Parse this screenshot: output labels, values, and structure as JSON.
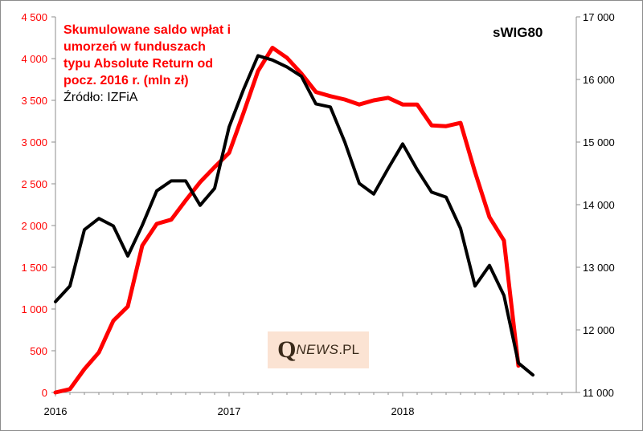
{
  "chart_data": {
    "type": "line",
    "title": "Skumulowane saldo wpłat i umorzeń w funduszach typu Absolute Return od pocz. 2016 r. (mln zł)",
    "title_lines": [
      "Skumulowane saldo wpłat i",
      "umorzeń w funduszach",
      "typu Absolute Return od",
      "pocz. 2016 r. (mln zł)"
    ],
    "source": "Źródło: IZFiA",
    "series_label": "sWIG80",
    "x_tick_labels": [
      "2016",
      "2017",
      "2018"
    ],
    "x_range": [
      0,
      36
    ],
    "y_left_ticks": [
      "0",
      "500",
      "1 000",
      "1 500",
      "2 000",
      "2 500",
      "3 000",
      "3 500",
      "4 000",
      "4 500"
    ],
    "y_left_range": [
      0,
      4500
    ],
    "y_right_ticks": [
      "11 000",
      "12 000",
      "13 000",
      "14 000",
      "15 000",
      "16 000",
      "17 000"
    ],
    "y_right_range": [
      11000,
      17000
    ],
    "grid": false,
    "series": [
      {
        "name": "",
        "axis": "left",
        "color": "#ff0000",
        "x": [
          0,
          1,
          2,
          3,
          4,
          5,
          6,
          7,
          8,
          9,
          10,
          11,
          12,
          13,
          14,
          15,
          16,
          17,
          18,
          19,
          20,
          21,
          22,
          23,
          24,
          25,
          26,
          27,
          28,
          29,
          30,
          31,
          32
        ],
        "values": [
          0,
          40,
          280,
          480,
          860,
          1030,
          1760,
          2020,
          2070,
          2300,
          2520,
          2700,
          2870,
          3350,
          3850,
          4130,
          4010,
          3820,
          3600,
          3550,
          3510,
          3450,
          3500,
          3530,
          3450,
          3450,
          3200,
          3190,
          3230,
          2640,
          2100,
          1820,
          320
        ]
      },
      {
        "name": "sWIG80",
        "axis": "right",
        "color": "#000000",
        "x": [
          0,
          1,
          2,
          3,
          4,
          5,
          6,
          7,
          8,
          9,
          10,
          11,
          12,
          13,
          14,
          15,
          16,
          17,
          18,
          19,
          20,
          21,
          22,
          23,
          24,
          25,
          26,
          27,
          28,
          29,
          30,
          31,
          32,
          33
        ],
        "values": [
          12450,
          12700,
          13600,
          13780,
          13660,
          13180,
          13670,
          14220,
          14380,
          14380,
          13990,
          14260,
          15240,
          15840,
          16380,
          16310,
          16200,
          16050,
          15610,
          15560,
          15000,
          14340,
          14170,
          14580,
          14970,
          14560,
          14200,
          14120,
          13620,
          12700,
          13030,
          12550,
          11470,
          11280
        ]
      }
    ]
  },
  "watermark": {
    "q": "Q",
    "news": "NEWS",
    "pl": ".PL"
  }
}
